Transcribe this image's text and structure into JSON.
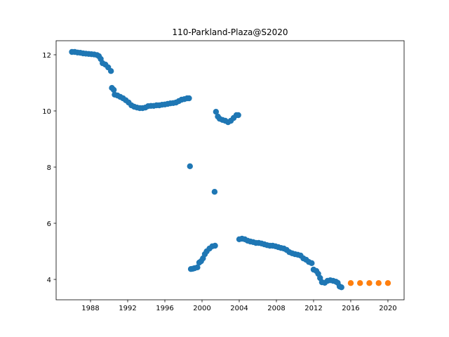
{
  "chart_data": {
    "type": "scatter",
    "title": "110-Parkland-Plaza@S2020",
    "xlim": [
      1984.3,
      2021.74
    ],
    "ylim": [
      3.275,
      12.5
    ],
    "xticks": [
      1988,
      1992,
      1996,
      2000,
      2004,
      2008,
      2012,
      2016,
      2020
    ],
    "yticks": [
      4,
      6,
      8,
      10,
      12
    ],
    "series": [
      {
        "color": "#1f77b4",
        "x": [
          1986.0,
          1986.3,
          1986.6,
          1986.9,
          1987.2,
          1987.5,
          1987.8,
          1988.1,
          1988.4,
          1988.7,
          1988.9,
          1989.1,
          1989.3,
          1989.6,
          1989.9,
          1990.2,
          1990.3,
          1990.5,
          1990.6,
          1990.9,
          1991.2,
          1991.5,
          1991.8,
          1992.1,
          1992.4,
          1992.7,
          1993.0,
          1993.3,
          1993.6,
          1993.9,
          1994.2,
          1994.5,
          1994.8,
          1995.1,
          1995.4,
          1995.7,
          1996.0,
          1996.3,
          1996.6,
          1996.9,
          1997.2,
          1997.5,
          1997.8,
          1998.1,
          1998.4,
          1998.6,
          1998.7,
          1998.8,
          1999.0,
          1999.2,
          1999.5,
          1999.7,
          1999.9,
          2000.1,
          2000.3,
          2000.5,
          2000.8,
          2001.1,
          2001.35,
          2001.4,
          2001.5,
          2001.7,
          2001.9,
          2002.2,
          2002.5,
          2002.8,
          2003.1,
          2003.4,
          2003.7,
          2003.9,
          2004.0,
          2004.3,
          2004.6,
          2004.9,
          2005.2,
          2005.5,
          2005.8,
          2006.1,
          2006.4,
          2006.7,
          2007.0,
          2007.3,
          2007.6,
          2007.9,
          2008.2,
          2008.5,
          2008.8,
          2009.1,
          2009.4,
          2009.7,
          2010.0,
          2010.3,
          2010.6,
          2010.9,
          2011.2,
          2011.5,
          2011.8,
          2012.0,
          2012.3,
          2012.5,
          2012.7,
          2012.9,
          2013.2,
          2013.5,
          2013.8,
          2014.1,
          2014.4,
          2014.6,
          2014.8,
          2015.0
        ],
        "values": [
          12.1,
          12.1,
          12.08,
          12.07,
          12.05,
          12.04,
          12.03,
          12.02,
          12.01,
          11.99,
          11.95,
          11.85,
          11.7,
          11.65,
          11.55,
          11.42,
          10.82,
          10.75,
          10.58,
          10.55,
          10.5,
          10.45,
          10.38,
          10.3,
          10.2,
          10.15,
          10.12,
          10.1,
          10.1,
          10.12,
          10.17,
          10.18,
          10.18,
          10.2,
          10.2,
          10.22,
          10.23,
          10.25,
          10.27,
          10.28,
          10.3,
          10.35,
          10.4,
          10.42,
          10.45,
          10.45,
          8.03,
          4.37,
          4.38,
          4.4,
          4.43,
          4.6,
          4.65,
          4.75,
          4.9,
          5.0,
          5.1,
          5.18,
          7.12,
          5.2,
          9.97,
          9.8,
          9.72,
          9.68,
          9.65,
          9.6,
          9.65,
          9.75,
          9.85,
          9.85,
          5.43,
          5.45,
          5.43,
          5.38,
          5.35,
          5.33,
          5.3,
          5.3,
          5.28,
          5.25,
          5.22,
          5.2,
          5.2,
          5.18,
          5.15,
          5.12,
          5.1,
          5.05,
          4.97,
          4.93,
          4.9,
          4.88,
          4.85,
          4.75,
          4.7,
          4.62,
          4.58,
          4.35,
          4.3,
          4.2,
          4.05,
          3.9,
          3.88,
          3.95,
          3.97,
          3.95,
          3.92,
          3.88,
          3.75,
          3.72
        ]
      },
      {
        "color": "#ff7f0e",
        "x": [
          2016,
          2017,
          2018,
          2019,
          2020
        ],
        "values": [
          3.87,
          3.87,
          3.87,
          3.87,
          3.87
        ]
      }
    ]
  }
}
